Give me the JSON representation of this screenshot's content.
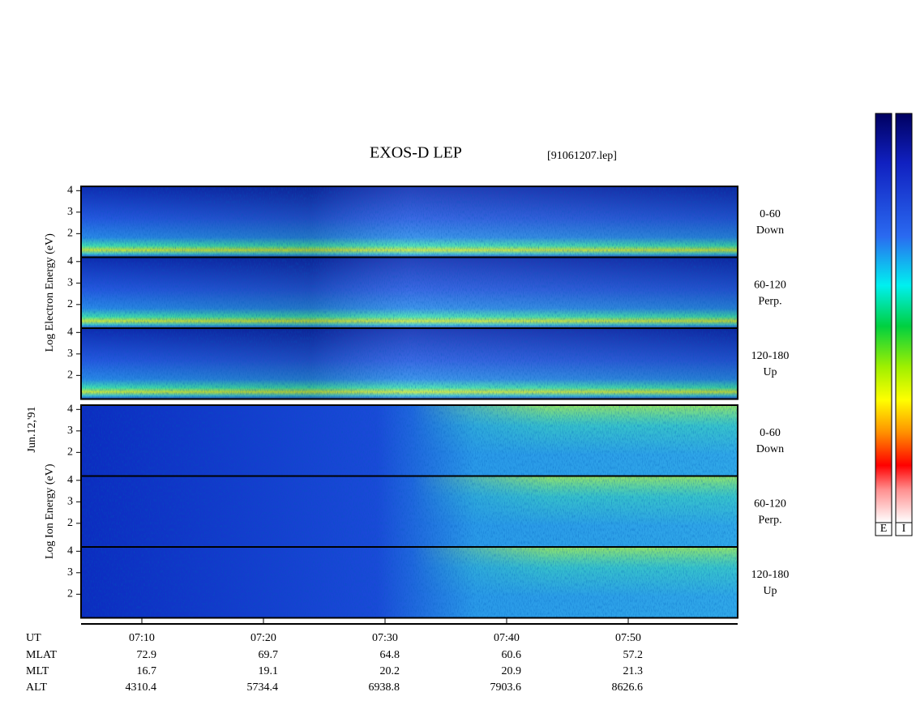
{
  "chart_data": {
    "type": "spectrogram",
    "title": "EXOS-D LEP",
    "file": "[91061207.lep]",
    "date": "Jun.12,'91",
    "groups": [
      {
        "ylabel": "Log Electron Energy (eV)",
        "panels": [
          {
            "label": [
              "0-60",
              "Down"
            ]
          },
          {
            "label": [
              "60-120",
              "Perp."
            ]
          },
          {
            "label": [
              "120-180",
              "Up"
            ]
          }
        ]
      },
      {
        "ylabel": "Log Ion Energy (eV)",
        "panels": [
          {
            "label": [
              "0-60",
              "Down"
            ]
          },
          {
            "label": [
              "60-120",
              "Perp."
            ]
          },
          {
            "label": [
              "120-180",
              "Up"
            ]
          }
        ]
      }
    ],
    "ylim": [
      0.9,
      4.2
    ],
    "yticks": [
      2,
      3,
      4
    ],
    "xlim": [
      5,
      59
    ],
    "x_label": "UT",
    "xticks": [
      {
        "value": 10,
        "label": "07:10"
      },
      {
        "value": 20,
        "label": "07:20"
      },
      {
        "value": 30,
        "label": "07:30"
      },
      {
        "value": 40,
        "label": "07:40"
      },
      {
        "value": 50,
        "label": "07:50"
      }
    ],
    "rows": [
      {
        "name": "MLAT",
        "values": [
          72.9,
          69.7,
          64.8,
          60.6,
          57.2
        ]
      },
      {
        "name": "MLT",
        "values": [
          16.7,
          19.1,
          20.2,
          20.9,
          21.3
        ]
      },
      {
        "name": "ALT",
        "values": [
          4310.4,
          5734.4,
          6938.8,
          7903.6,
          8626.6
        ]
      }
    ],
    "colorbar_labels": [
      "E",
      "I"
    ]
  }
}
